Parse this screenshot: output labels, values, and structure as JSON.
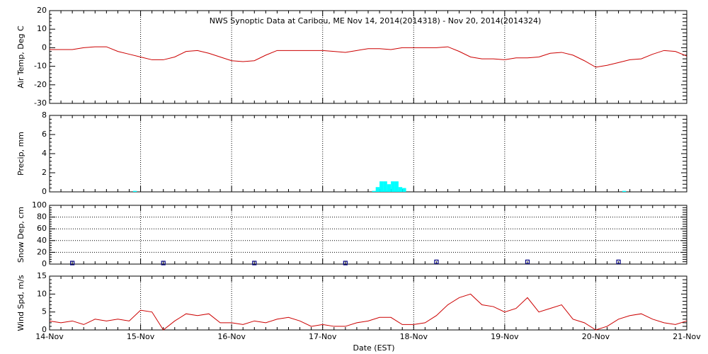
{
  "chart_data": [
    {
      "type": "line",
      "title": "NWS Synoptic Data at Caribou, ME   Nov 14, 2014(2014318) - Nov 20, 2014(2014324)",
      "y_label": "Air Temp, Deg C",
      "color": "#cc0000",
      "grid": "x",
      "ylim": [
        -30,
        20
      ],
      "yticks": [
        -30,
        -20,
        -10,
        0,
        10,
        20
      ],
      "x": [
        0,
        0.125,
        0.25,
        0.375,
        0.5,
        0.625,
        0.75,
        0.875,
        1,
        1.125,
        1.25,
        1.375,
        1.5,
        1.625,
        1.75,
        1.875,
        2,
        2.125,
        2.25,
        2.375,
        2.5,
        2.625,
        2.75,
        2.875,
        3,
        3.125,
        3.25,
        3.375,
        3.5,
        3.625,
        3.75,
        3.875,
        4,
        4.125,
        4.25,
        4.375,
        4.5,
        4.625,
        4.75,
        4.875,
        5,
        5.125,
        5.25,
        5.375,
        5.5,
        5.625,
        5.75,
        5.875,
        6,
        6.125,
        6.25,
        6.375,
        6.5,
        6.625,
        6.75,
        6.875,
        7
      ],
      "values": [
        -1,
        -1,
        -1,
        0,
        0.5,
        0.5,
        -2,
        -3.5,
        -5,
        -6.5,
        -6.5,
        -5,
        -2,
        -1.5,
        -3,
        -5,
        -7,
        -7.5,
        -7,
        -4,
        -1.5,
        -1.5,
        -1.5,
        -1.5,
        -1.5,
        -2,
        -2.5,
        -1.5,
        -0.5,
        -0.5,
        -1,
        0,
        0,
        0,
        0,
        0.5,
        -2,
        -5,
        -6,
        -6,
        -6.5,
        -5.5,
        -5.5,
        -5,
        -3,
        -2.5,
        -4,
        -7,
        -10.5,
        -9.5,
        -8,
        -6.5,
        -6,
        -3.5,
        -1.5,
        -2,
        -4.5
      ]
    },
    {
      "type": "bar",
      "y_label": "Precip, mm",
      "color": "#00ffff",
      "grid": "x",
      "ylim": [
        0,
        8
      ],
      "yticks": [
        0,
        2,
        4,
        6,
        8
      ],
      "x": [
        0.917,
        3.542,
        3.583,
        3.625,
        3.667,
        3.708,
        3.75,
        3.792,
        3.833,
        3.875,
        6.292
      ],
      "values": [
        0.1,
        0.1,
        0.5,
        1.1,
        1.1,
        0.8,
        1.1,
        1.1,
        0.5,
        0.4,
        0.1
      ]
    },
    {
      "type": "scatter",
      "y_label": "Snow Dep, cm",
      "color": "#000080",
      "grid": "both",
      "ylim": [
        0,
        100
      ],
      "yticks": [
        0,
        20,
        40,
        60,
        80,
        100
      ],
      "x": [
        0.25,
        1.25,
        2.25,
        3.25,
        4.25,
        5.25,
        6.25
      ],
      "values": [
        0,
        0,
        0,
        0,
        2,
        2,
        2
      ]
    },
    {
      "type": "line",
      "y_label": "Wind Spd, m/s",
      "x_label": "Date (EST)",
      "color": "#cc0000",
      "grid": "x",
      "ylim": [
        0,
        15
      ],
      "yticks": [
        0,
        5,
        10,
        15
      ],
      "xlim": [
        0,
        7
      ],
      "xticks": [
        {
          "value": 0,
          "label": "14-Nov"
        },
        {
          "value": 1,
          "label": "15-Nov"
        },
        {
          "value": 2,
          "label": "16-Nov"
        },
        {
          "value": 3,
          "label": "17-Nov"
        },
        {
          "value": 4,
          "label": "18-Nov"
        },
        {
          "value": 5,
          "label": "19-Nov"
        },
        {
          "value": 6,
          "label": "20-Nov"
        },
        {
          "value": 7,
          "label": "21-Nov"
        }
      ],
      "x": [
        0,
        0.125,
        0.25,
        0.375,
        0.5,
        0.625,
        0.75,
        0.875,
        1,
        1.125,
        1.25,
        1.375,
        1.5,
        1.625,
        1.75,
        1.875,
        2,
        2.125,
        2.25,
        2.375,
        2.5,
        2.625,
        2.75,
        2.875,
        3,
        3.125,
        3.25,
        3.375,
        3.5,
        3.625,
        3.75,
        3.875,
        4,
        4.125,
        4.25,
        4.375,
        4.5,
        4.625,
        4.75,
        4.875,
        5,
        5.125,
        5.25,
        5.375,
        5.5,
        5.625,
        5.75,
        5.875,
        6,
        6.125,
        6.25,
        6.375,
        6.5,
        6.625,
        6.75,
        6.875,
        7
      ],
      "values": [
        2.5,
        2,
        2.5,
        1.5,
        3,
        2.5,
        3,
        2.5,
        5.5,
        5,
        0,
        2.5,
        4.5,
        4,
        4.5,
        2,
        2,
        1.5,
        2.5,
        2,
        3,
        3.5,
        2.5,
        1,
        1.5,
        1,
        1,
        2,
        2.5,
        3.5,
        3.5,
        1.5,
        1.5,
        2,
        4,
        7,
        9,
        10,
        7,
        6.5,
        5,
        6,
        9,
        5,
        6,
        7,
        3,
        2,
        0,
        1,
        3,
        4,
        4.5,
        3,
        2,
        1.5,
        2.5
      ]
    }
  ]
}
